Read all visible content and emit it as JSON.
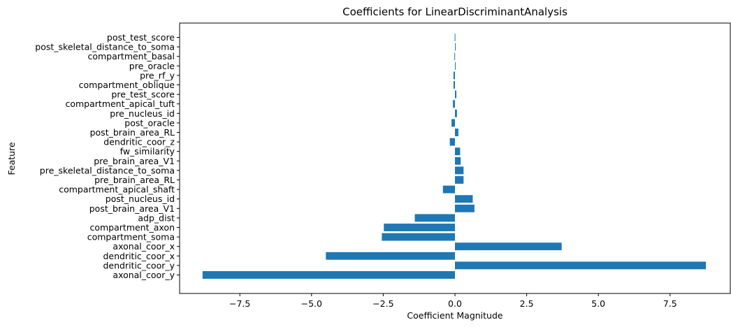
{
  "chart_data": {
    "type": "bar",
    "orientation": "horizontal",
    "title": "Coefficients for LinearDiscriminantAnalysis",
    "xlabel": "Coefficient Magnitude",
    "ylabel": "Feature",
    "xlim": [
      -9.6,
      9.6
    ],
    "x_ticks": [
      -7.5,
      -5.0,
      -2.5,
      0.0,
      2.5,
      5.0,
      7.5
    ],
    "x_tick_labels": [
      "−7.5",
      "−5.0",
      "−2.5",
      "0.0",
      "2.5",
      "5.0",
      "7.5"
    ],
    "grid": false,
    "bar_color": "#1f77b4",
    "categories": [
      "axonal_coor_y",
      "dendritic_coor_y",
      "dendritic_coor_x",
      "axonal_coor_x",
      "compartment_soma",
      "compartment_axon",
      "adp_dist",
      "post_brain_area_V1",
      "post_nucleus_id",
      "compartment_apical_shaft",
      "pre_brain_area_RL",
      "pre_skeletal_distance_to_soma",
      "pre_brain_area_V1",
      "fw_similarity",
      "dendritic_coor_z",
      "post_brain_area_RL",
      "post_oracle",
      "pre_nucleus_id",
      "compartment_apical_tuft",
      "pre_test_score",
      "compartment_oblique",
      "pre_rf_y",
      "pre_oracle",
      "compartment_basal",
      "post_skeletal_distance_to_soma",
      "post_test_score"
    ],
    "values": [
      -8.8,
      8.75,
      -4.5,
      3.72,
      -2.55,
      -2.48,
      -1.4,
      0.68,
      0.62,
      -0.42,
      0.3,
      0.3,
      0.2,
      0.18,
      -0.18,
      0.12,
      -0.12,
      0.07,
      -0.07,
      0.05,
      -0.05,
      -0.05,
      0.02,
      -0.02,
      0.0,
      -0.01
    ]
  }
}
